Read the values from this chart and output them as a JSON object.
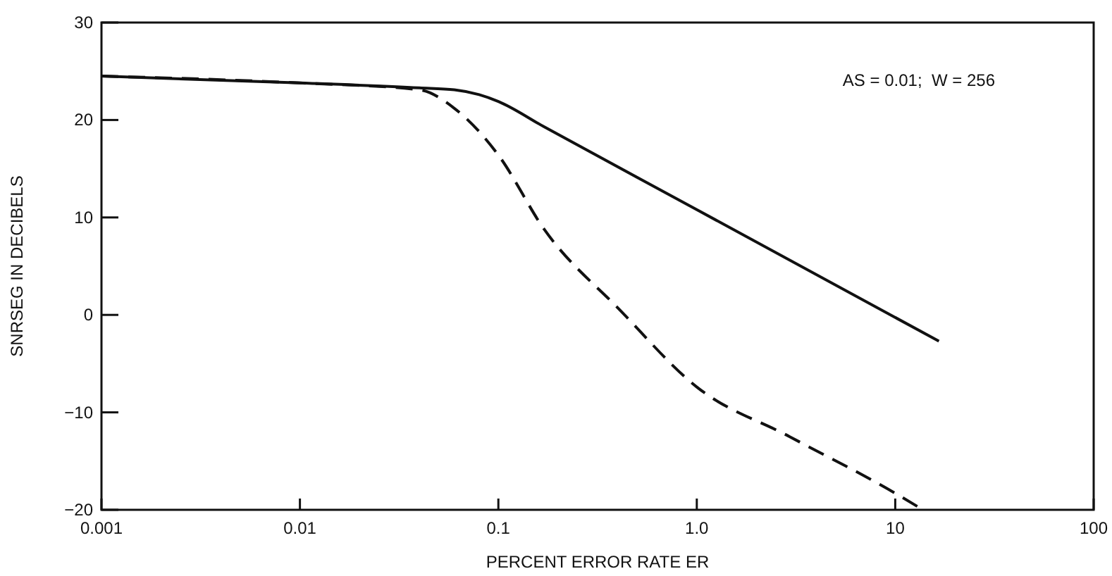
{
  "chart_data": {
    "type": "line",
    "xlabel": "PERCENT ERROR RATE ER",
    "ylabel": "SNRSEG IN DECIBELS",
    "log": "x",
    "xlim": [
      0.001,
      100
    ],
    "ylim": [
      -20,
      30
    ],
    "xticks": [
      0.001,
      0.01,
      0.1,
      {
        "value": 1,
        "label": "1.0"
      },
      10,
      100
    ],
    "yticks": [
      -20,
      -10,
      0,
      10,
      20,
      30
    ],
    "grid": false,
    "marker": "none",
    "annotations": [
      "AS = 0.01;  W = 256"
    ],
    "series": [
      {
        "color": "#111111",
        "line_style": "solid",
        "x": [
          0.001,
          0.01,
          0.04,
          0.06,
          0.08,
          0.1,
          0.17,
          1,
          16.6
        ],
        "values": [
          24.5,
          23.8,
          23.3,
          23.1,
          22.6,
          21.9,
          19.3,
          10.8,
          -2.7
        ]
      },
      {
        "color": "#111111",
        "line_style": "dashed",
        "x": [
          0.001,
          0.01,
          0.04,
          0.06,
          0.1,
          0.17,
          0.41,
          1,
          2.94,
          10,
          13.8
        ],
        "values": [
          24.5,
          23.8,
          23.1,
          21.2,
          16.4,
          8.8,
          0.5,
          -7.4,
          -12.5,
          -18.3,
          -20
        ]
      }
    ]
  }
}
